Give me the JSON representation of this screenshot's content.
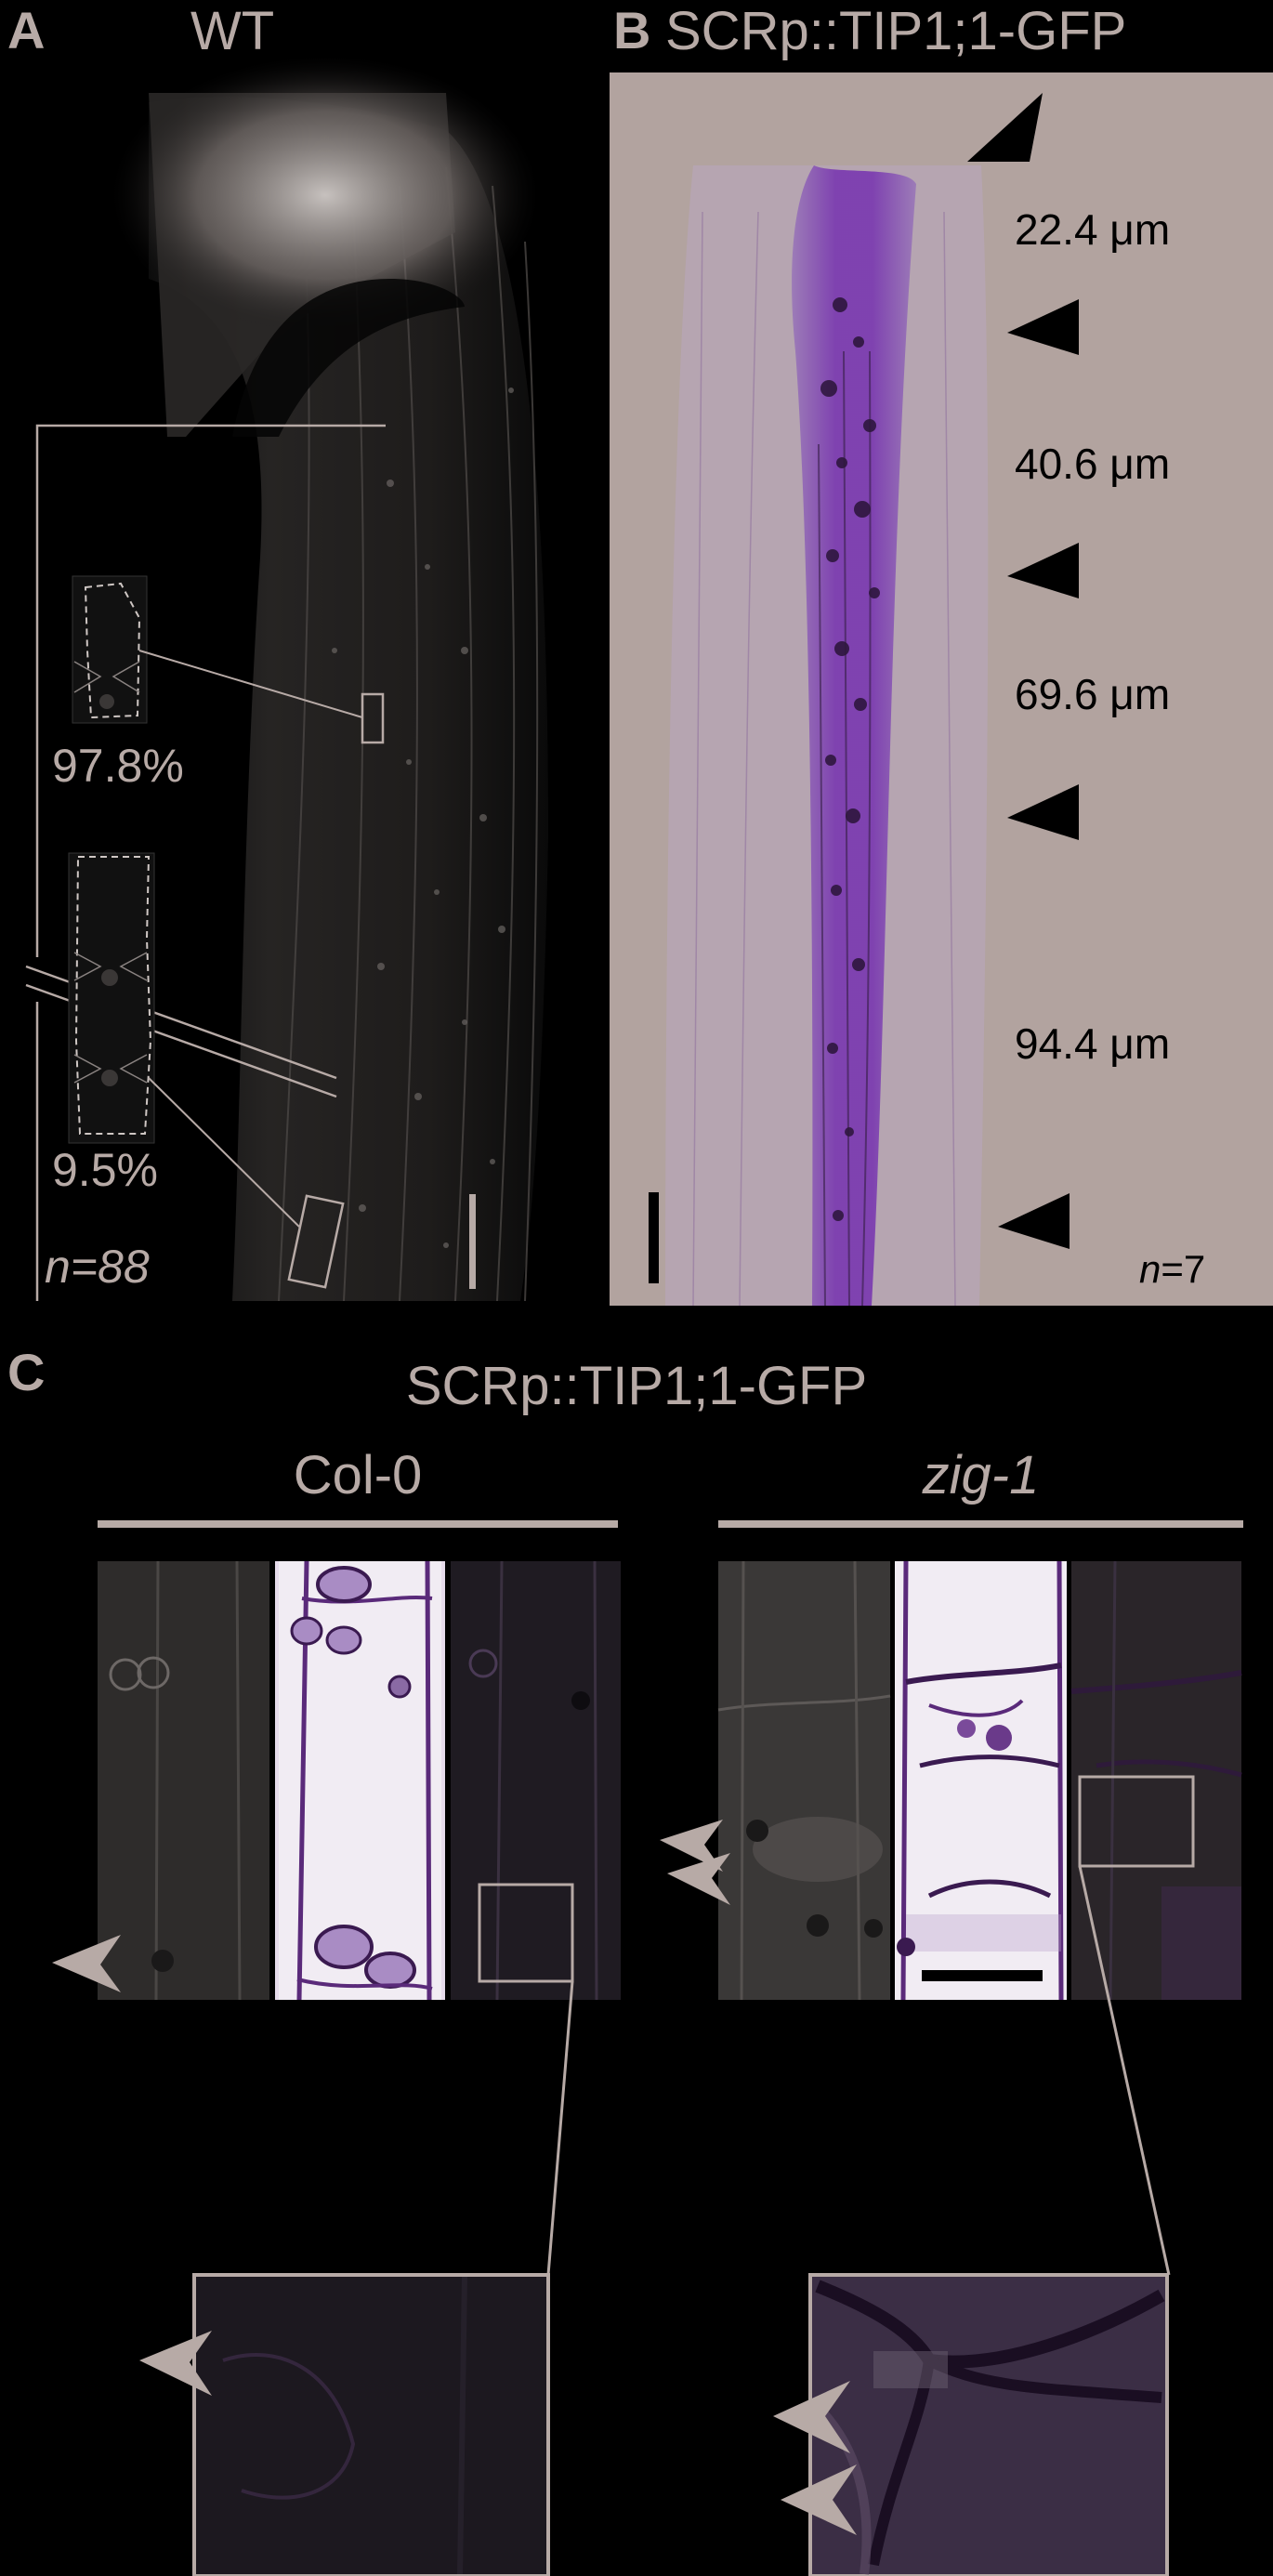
{
  "colors": {
    "background": "#000000",
    "label": "#b7aaa6",
    "panel_b_bg": "#b2a39f",
    "tip_signal": "#7a3ab0",
    "arrow": "#b7aaa6",
    "arrow_dark": "#000000"
  },
  "panel_a": {
    "letter": "A",
    "title": "WT",
    "upper_percent": "97.8%",
    "lower_percent": "9.5%",
    "n": "n=88"
  },
  "panel_b": {
    "letter": "B",
    "title": "SCRp::TIP1;1-GFP",
    "distances": [
      "22.4 μm",
      "40.6 μm",
      "69.6 μm",
      "94.4 μm"
    ],
    "n_label": "n",
    "n_value": "=7"
  },
  "panel_c": {
    "letter": "C",
    "title": "SCRp::TIP1;1-GFP",
    "left_genotype": "Col-0",
    "right_genotype": "zig-1"
  }
}
